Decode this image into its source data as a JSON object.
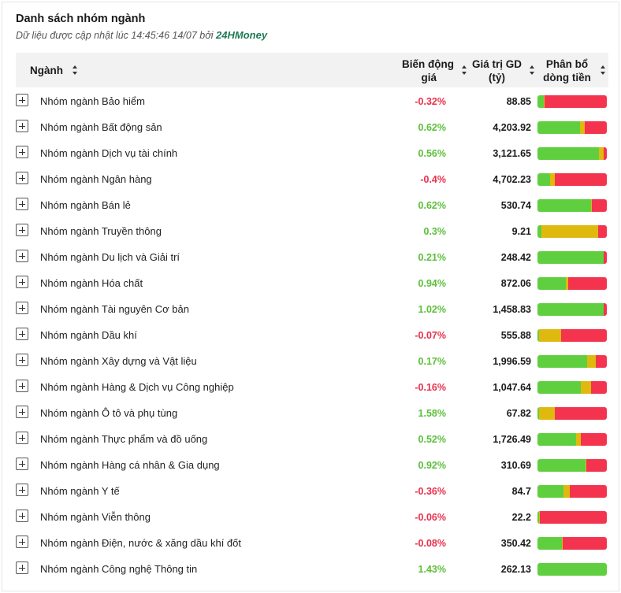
{
  "header": {
    "title": "Danh sách nhóm ngành",
    "updated_prefix": "Dữ liệu được cập nhật lúc 14:45:46 14/07 bởi",
    "brand": "24HMoney"
  },
  "columns": {
    "industry": "Ngành",
    "change_line1": "Biến động",
    "change_line2": "giá",
    "value_line1": "Giá trị GD",
    "value_line2": "(tỷ)",
    "flow_line1": "Phân bổ",
    "flow_line2": "dòng tiền"
  },
  "colors": {
    "up": "#5fcf3f",
    "reference": "#e0b90f",
    "down": "#f4344f",
    "brand": "#1e7a55"
  },
  "rows": [
    {
      "name": "Nhóm ngành Bảo hiểm",
      "change": "-0.32%",
      "trend": "down",
      "value": "88.85",
      "flow": [
        0.09,
        0.01,
        0.9
      ]
    },
    {
      "name": "Nhóm ngành Bất động sản",
      "change": "0.62%",
      "trend": "up",
      "value": "4,203.92",
      "flow": [
        0.61,
        0.07,
        0.32
      ]
    },
    {
      "name": "Nhóm ngành Dịch vụ tài chính",
      "change": "0.56%",
      "trend": "up",
      "value": "3,121.65",
      "flow": [
        0.89,
        0.06,
        0.05
      ]
    },
    {
      "name": "Nhóm ngành Ngân hàng",
      "change": "-0.4%",
      "trend": "down",
      "value": "4,702.23",
      "flow": [
        0.18,
        0.07,
        0.75
      ]
    },
    {
      "name": "Nhóm ngành Bán lẻ",
      "change": "0.62%",
      "trend": "up",
      "value": "530.74",
      "flow": [
        0.77,
        0.01,
        0.22
      ]
    },
    {
      "name": "Nhóm ngành Truyền thông",
      "change": "0.3%",
      "trend": "up",
      "value": "9.21",
      "flow": [
        0.06,
        0.81,
        0.13
      ]
    },
    {
      "name": "Nhóm ngành Du lịch và Giải trí",
      "change": "0.21%",
      "trend": "up",
      "value": "248.42",
      "flow": [
        0.95,
        0.01,
        0.04
      ]
    },
    {
      "name": "Nhóm ngành Hóa chất",
      "change": "0.94%",
      "trend": "up",
      "value": "872.06",
      "flow": [
        0.41,
        0.03,
        0.56
      ]
    },
    {
      "name": "Nhóm ngành Tài nguyên Cơ bản",
      "change": "1.02%",
      "trend": "up",
      "value": "1,458.83",
      "flow": [
        0.95,
        0.01,
        0.04
      ]
    },
    {
      "name": "Nhóm ngành Dầu khí",
      "change": "-0.07%",
      "trend": "down",
      "value": "555.88",
      "flow": [
        0.02,
        0.32,
        0.66
      ]
    },
    {
      "name": "Nhóm ngành Xây dựng và Vật liệu",
      "change": "0.17%",
      "trend": "up",
      "value": "1,996.59",
      "flow": [
        0.72,
        0.12,
        0.16
      ]
    },
    {
      "name": "Nhóm ngành Hàng & Dịch vụ Công nghiệp",
      "change": "-0.16%",
      "trend": "down",
      "value": "1,047.64",
      "flow": [
        0.63,
        0.14,
        0.23
      ]
    },
    {
      "name": "Nhóm ngành Ô tô và phụ tùng",
      "change": "1.58%",
      "trend": "up",
      "value": "67.82",
      "flow": [
        0.02,
        0.23,
        0.75
      ]
    },
    {
      "name": "Nhóm ngành Thực phẩm và đồ uống",
      "change": "0.52%",
      "trend": "up",
      "value": "1,726.49",
      "flow": [
        0.56,
        0.07,
        0.37
      ]
    },
    {
      "name": "Nhóm ngành Hàng cá nhân & Gia dụng",
      "change": "0.92%",
      "trend": "up",
      "value": "310.69",
      "flow": [
        0.69,
        0.01,
        0.3
      ]
    },
    {
      "name": "Nhóm ngành Y tế",
      "change": "-0.36%",
      "trend": "down",
      "value": "84.7",
      "flow": [
        0.37,
        0.1,
        0.53
      ]
    },
    {
      "name": "Nhóm ngành Viễn thông",
      "change": "-0.06%",
      "trend": "down",
      "value": "22.2",
      "flow": [
        0.02,
        0.01,
        0.97
      ]
    },
    {
      "name": "Nhóm ngành Điện, nước & xăng dầu khí đốt",
      "change": "-0.08%",
      "trend": "down",
      "value": "350.42",
      "flow": [
        0.35,
        0.01,
        0.64
      ]
    },
    {
      "name": "Nhóm ngành Công nghệ Thông tin",
      "change": "1.43%",
      "trend": "up",
      "value": "262.13",
      "flow": [
        1.0,
        0.0,
        0.0
      ]
    }
  ]
}
